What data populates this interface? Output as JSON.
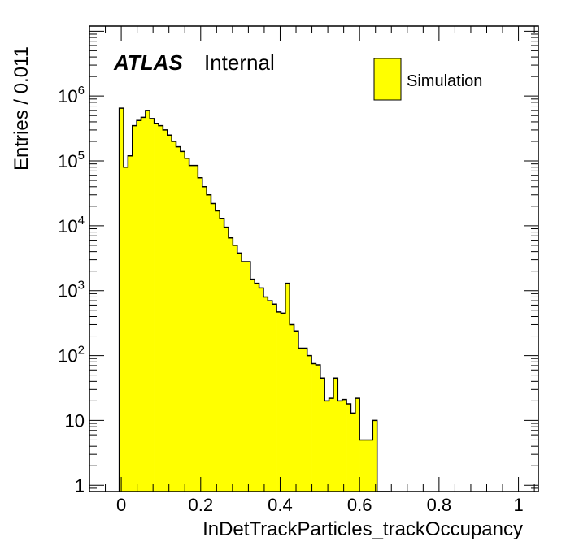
{
  "chart_data": {
    "type": "bar",
    "xlabel": "InDetTrackParticles_trackOccupancy",
    "ylabel": "Entries / 0.011",
    "xlim": [
      -0.08,
      1.05
    ],
    "ylim": [
      0.8,
      12000000
    ],
    "yscale": "log",
    "bin_width": 0.011,
    "x_start": -0.005,
    "x_ticks": [
      "0",
      "0.2",
      "0.4",
      "0.6",
      "0.8",
      "1"
    ],
    "y_ticks": [
      "1",
      "10",
      "10^2",
      "10^3",
      "10^4",
      "10^5",
      "10^6"
    ],
    "fill_color": "#ffff00",
    "line_color": "#000000",
    "label_bold": "ATLAS",
    "label_text": "Internal",
    "legend": {
      "position": "top-right",
      "entries": [
        {
          "name": "Simulation",
          "color": "#ffff00"
        }
      ]
    },
    "values": [
      650000,
      80000,
      120000,
      350000,
      420000,
      470000,
      600000,
      450000,
      380000,
      350000,
      300000,
      250000,
      200000,
      165000,
      140000,
      110000,
      85000,
      85000,
      55000,
      40000,
      30000,
      22000,
      17000,
      13000,
      9500,
      6500,
      5000,
      3800,
      2800,
      2800,
      1500,
      1300,
      1100,
      800,
      700,
      620,
      470,
      450,
      1300,
      300,
      240,
      130,
      130,
      100,
      75,
      72,
      45,
      20,
      22,
      45,
      20,
      21,
      18,
      13,
      22,
      5,
      5,
      5,
      10,
      0,
      0,
      0
    ]
  }
}
